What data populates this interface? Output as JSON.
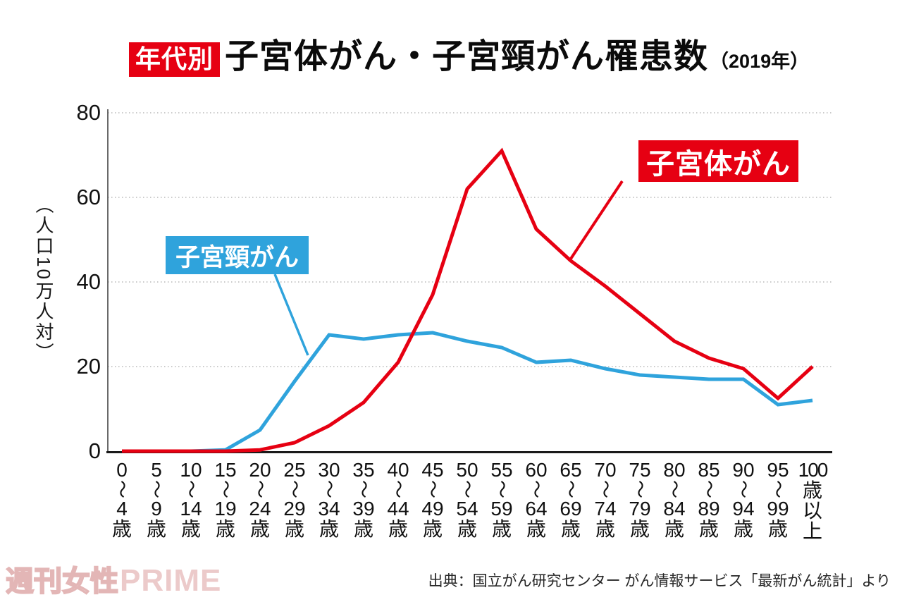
{
  "title": {
    "badge": "年代別",
    "main": "子宮体がん・子宮頸がん罹患数",
    "year_note": "（2019年）"
  },
  "y_axis": {
    "unit_label": "（人口10万人対）",
    "ticks": [
      0,
      20,
      40,
      60,
      80
    ]
  },
  "series_labels": {
    "taigan": "子宮体がん",
    "keigan": "子宮頸がん"
  },
  "footer": {
    "logo_jp": "週刊女性",
    "logo_en": "PRIME",
    "source": "出典：国立がん研究センター がん情報サービス「最新がん統計」より"
  },
  "colors": {
    "accent_red": "#e60012",
    "accent_blue": "#2fa3dc",
    "grid": "#aaaaaa",
    "axis": "#1a1a1a"
  },
  "chart_data": {
    "type": "line",
    "title": "年代別 子宮体がん・子宮頸がん罹患数（2019年）",
    "ylabel": "（人口10万人対）",
    "ylim": [
      0,
      80
    ],
    "gridlines": [
      20,
      40,
      60,
      80
    ],
    "grid": "dotted horizontal",
    "legend_position": "callout-boxes-on-plot",
    "categories": [
      "0〜4歳",
      "5〜9歳",
      "10〜14歳",
      "15〜19歳",
      "20〜24歳",
      "25〜29歳",
      "30〜34歳",
      "35〜39歳",
      "40〜44歳",
      "45〜49歳",
      "50〜54歳",
      "55〜59歳",
      "60〜64歳",
      "65〜69歳",
      "70〜74歳",
      "75〜79歳",
      "80〜84歳",
      "85〜89歳",
      "90〜94歳",
      "95〜99歳",
      "100歳以上"
    ],
    "series": [
      {
        "name": "子宮頸がん",
        "color": "#2fa3dc",
        "values": [
          0,
          0,
          0,
          0.3,
          5,
          16.5,
          27.5,
          26.5,
          27.5,
          28,
          26,
          24.5,
          21,
          21.5,
          19.5,
          18,
          17.5,
          17,
          17,
          11,
          12
        ]
      },
      {
        "name": "子宮体がん",
        "color": "#e60012",
        "values": [
          0,
          0,
          0,
          0,
          0.3,
          2,
          6,
          11.5,
          21,
          37,
          62,
          71,
          52.5,
          45,
          39,
          32.5,
          26,
          22,
          19.5,
          12.5,
          20
        ]
      }
    ]
  }
}
